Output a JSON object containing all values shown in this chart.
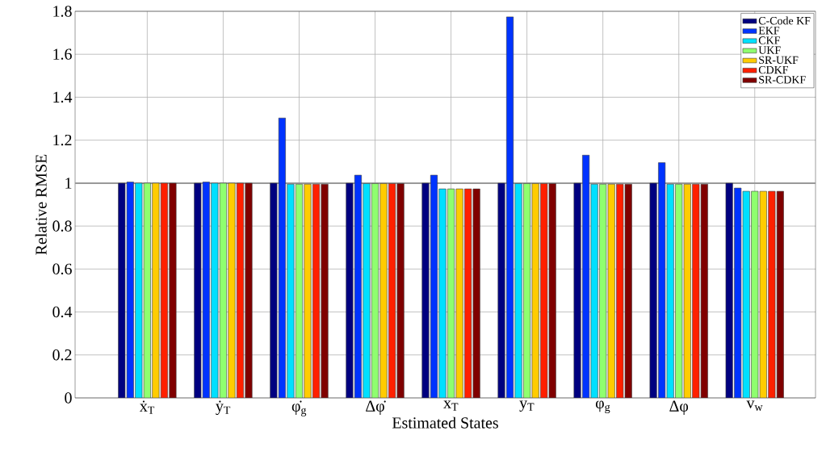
{
  "chart_data": {
    "type": "bar",
    "xlabel": "Estimated States",
    "ylabel": "Relative RMSE",
    "categories": [
      "ẋ$_{T}$",
      "ẏ$_{T}$",
      "φ̇$_{g}$",
      "Δφ̇",
      "x$_{T}$",
      "y$_{T}$",
      "φ$_{g}$",
      "Δφ",
      "v$_{w}$"
    ],
    "series": [
      {
        "name": "C-Code KF",
        "color": "#000080",
        "values": [
          1,
          1,
          1,
          1,
          1,
          1,
          1,
          1,
          1
        ]
      },
      {
        "name": "EKF",
        "color": "#0033ff",
        "values": [
          1.005,
          1.005,
          1.303,
          1.037,
          1.037,
          1.774,
          1.13,
          1.095,
          0.977
        ]
      },
      {
        "name": "CKF",
        "color": "#00e0ff",
        "values": [
          1.0,
          1.0,
          0.995,
          0.998,
          0.973,
          0.998,
          0.995,
          0.995,
          0.962
        ]
      },
      {
        "name": "UKF",
        "color": "#8fff6f",
        "values": [
          1.0,
          1.0,
          0.995,
          0.998,
          0.973,
          0.998,
          0.995,
          0.995,
          0.962
        ]
      },
      {
        "name": "SR-UKF",
        "color": "#ffcc00",
        "values": [
          1.0,
          1.0,
          0.995,
          0.998,
          0.973,
          0.998,
          0.995,
          0.995,
          0.962
        ]
      },
      {
        "name": "CDKF",
        "color": "#ff2000",
        "values": [
          1.0,
          1.0,
          0.995,
          0.998,
          0.973,
          0.998,
          0.995,
          0.995,
          0.962
        ]
      },
      {
        "name": "SR-CDKF",
        "color": "#800000",
        "values": [
          1.0,
          1.0,
          0.995,
          0.998,
          0.973,
          0.998,
          0.995,
          0.995,
          0.962
        ]
      }
    ],
    "ylim": [
      0,
      1.8
    ],
    "yticks": [
      0,
      0.2,
      0.4,
      0.6,
      0.8,
      1,
      1.2,
      1.4,
      1.6,
      1.8
    ],
    "ref_lines": [
      {
        "axis": "y",
        "value": 1,
        "color": "#999999"
      }
    ],
    "grid": true,
    "legend": "top right"
  }
}
